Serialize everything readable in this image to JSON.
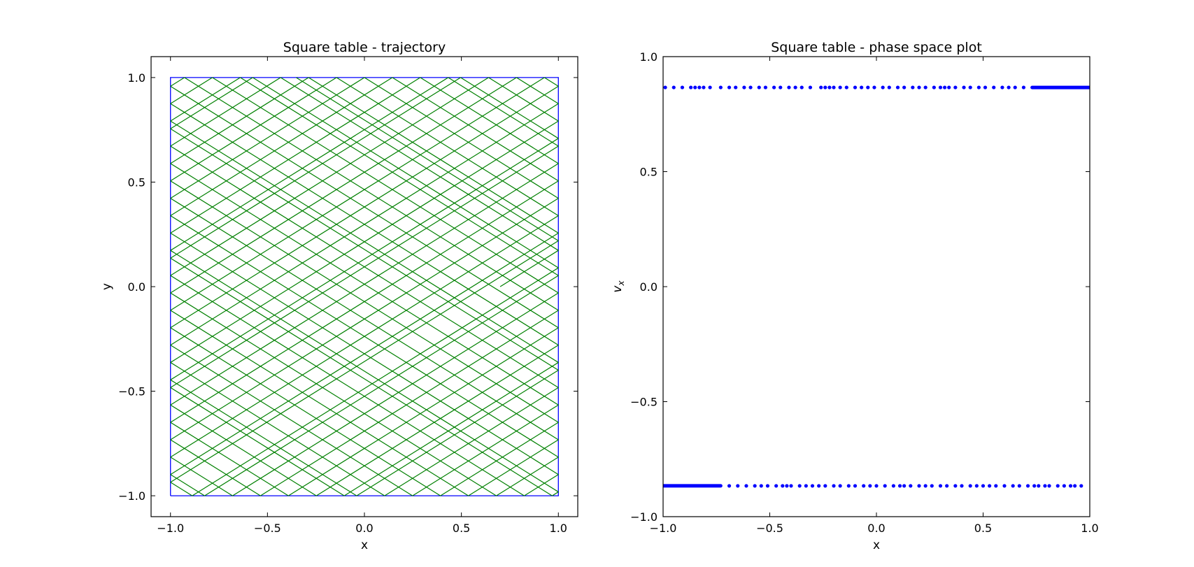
{
  "chart_data": [
    {
      "type": "line",
      "title": "Square table - trajectory",
      "xlabel": "x",
      "ylabel": "y",
      "xlim": [
        -1.1,
        1.1
      ],
      "ylim": [
        -1.1,
        1.1
      ],
      "xticks": [
        -1.0,
        -0.5,
        0.0,
        0.5,
        1.0
      ],
      "yticks": [
        -1.0,
        -0.5,
        0.0,
        0.5,
        1.0
      ],
      "xtick_labels": [
        "−1.0",
        "−0.5",
        "0.0",
        "0.5",
        "1.0"
      ],
      "ytick_labels": [
        "−1.0",
        "−0.5",
        "0.0",
        "0.5",
        "1.0"
      ],
      "grid": false,
      "series": [
        {
          "role": "table boundary",
          "color": "#0000ff",
          "points": [
            [
              -1,
              -1
            ],
            [
              1,
              -1
            ],
            [
              1,
              1
            ],
            [
              -1,
              1
            ],
            [
              -1,
              -1
            ]
          ]
        },
        {
          "role": "trajectory",
          "color": "#008000",
          "start": [
            0.7,
            0.0
          ],
          "velocity": [
            0.866,
            0.5
          ],
          "points": [
            [
              0.7,
              0.0
            ],
            [
              1.0,
              0.173
            ],
            [
              -1.0,
              1.328
            ]
          ]
        }
      ]
    },
    {
      "type": "scatter",
      "title": "Square table - phase space plot",
      "xlabel": "x",
      "ylabel": "v_x",
      "xlim": [
        -1.0,
        1.0
      ],
      "ylim": [
        -1.0,
        1.0
      ],
      "xticks": [
        -1.0,
        -0.5,
        0.0,
        0.5,
        1.0
      ],
      "yticks": [
        -1.0,
        -0.5,
        0.0,
        0.5,
        1.0
      ],
      "xtick_labels": [
        "−1.0",
        "−0.5",
        "0.0",
        "0.5",
        "1.0"
      ],
      "ytick_labels": [
        "−1.0",
        "−0.5",
        "0.0",
        "0.5",
        "1.0"
      ],
      "grid": false,
      "series": [
        {
          "color": "#0000ff",
          "y": 0.866,
          "x": [
            -0.99,
            -0.95,
            -0.91,
            -0.87,
            -0.85,
            -0.83,
            -0.81,
            -0.78,
            -0.73,
            -0.69,
            -0.66,
            -0.62,
            -0.59,
            -0.55,
            -0.52,
            -0.48,
            -0.45,
            -0.41,
            -0.38,
            -0.35,
            -0.31,
            -0.26,
            -0.24,
            -0.22,
            -0.2,
            -0.17,
            -0.14,
            -0.1,
            -0.07,
            -0.04,
            -0.01,
            0.03,
            0.06,
            0.1,
            0.13,
            0.17,
            0.2,
            0.23,
            0.27,
            0.3,
            0.32,
            0.34,
            0.37,
            0.41,
            0.44,
            0.48,
            0.51,
            0.55,
            0.59,
            0.62,
            0.65,
            0.69
          ],
          "dense_range": [
            0.73,
            1.0
          ]
        },
        {
          "color": "#0000ff",
          "y": -0.866,
          "x": [
            -0.69,
            -0.65,
            -0.61,
            -0.57,
            -0.54,
            -0.51,
            -0.47,
            -0.44,
            -0.42,
            -0.4,
            -0.36,
            -0.33,
            -0.3,
            -0.27,
            -0.24,
            -0.2,
            -0.17,
            -0.13,
            -0.1,
            -0.06,
            -0.03,
            0.0,
            0.04,
            0.08,
            0.11,
            0.13,
            0.16,
            0.2,
            0.23,
            0.26,
            0.3,
            0.33,
            0.37,
            0.4,
            0.44,
            0.47,
            0.5,
            0.53,
            0.56,
            0.6,
            0.64,
            0.67,
            0.71,
            0.74,
            0.76,
            0.79,
            0.81,
            0.85,
            0.88,
            0.91,
            0.93,
            0.96
          ],
          "dense_range": [
            -1.0,
            -0.73
          ]
        }
      ]
    }
  ]
}
